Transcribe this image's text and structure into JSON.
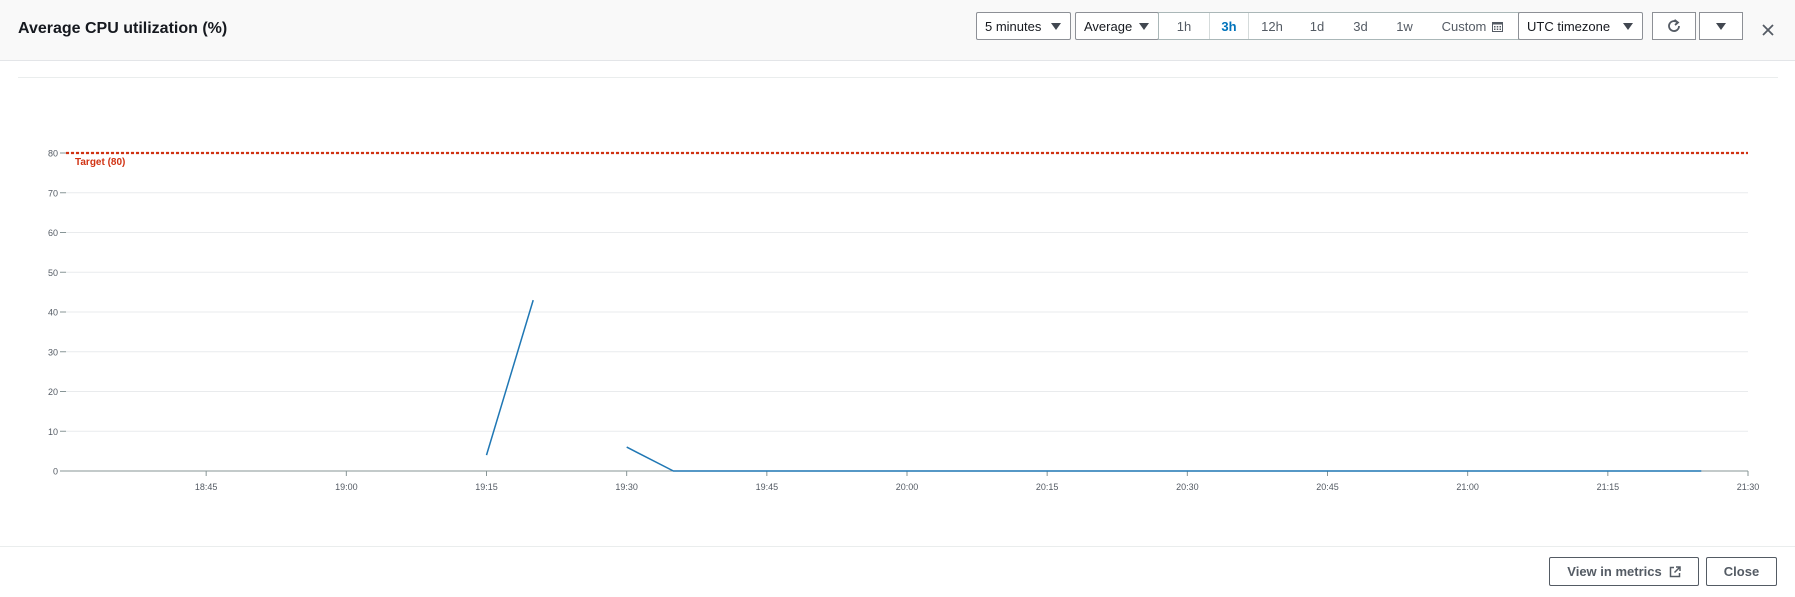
{
  "header": {
    "title": "Average CPU utilization (%)",
    "period": "5 minutes",
    "statistic": "Average",
    "ranges": [
      "1h",
      "3h",
      "12h",
      "1d",
      "3d",
      "1w",
      "Custom"
    ],
    "active_range": "3h",
    "timezone": "UTC timezone"
  },
  "footer": {
    "view_metrics": "View in metrics",
    "close": "Close"
  },
  "icons": {
    "refresh": "refresh-icon",
    "dropdown": "caret-down-icon",
    "close": "close-icon",
    "calendar": "calendar-icon",
    "external": "external-link-icon"
  },
  "colors": {
    "series": "#1f77b4",
    "threshold": "#d13212",
    "active_range": "#0073bb"
  },
  "chart_data": {
    "type": "line",
    "y_ticks": [
      0,
      10,
      20,
      30,
      40,
      50,
      60,
      70,
      80
    ],
    "ylim": [
      0,
      80
    ],
    "x_ticks": [
      "18:45",
      "19:00",
      "19:15",
      "19:30",
      "19:45",
      "20:00",
      "20:15",
      "20:30",
      "20:45",
      "21:00",
      "21:15",
      "21:30"
    ],
    "xlim": [
      "18:30",
      "21:30"
    ],
    "grid": true,
    "threshold": {
      "label": "Target (80)",
      "value": 80
    },
    "segments": [
      [
        {
          "x": "19:15",
          "y": 4
        },
        {
          "x": "19:20",
          "y": 43
        }
      ],
      [
        {
          "x": "19:30",
          "y": 6
        },
        {
          "x": "19:35",
          "y": 0
        },
        {
          "x": "19:40",
          "y": 0
        },
        {
          "x": "19:45",
          "y": 0
        },
        {
          "x": "19:50",
          "y": 0
        },
        {
          "x": "19:55",
          "y": 0
        },
        {
          "x": "20:00",
          "y": 0
        },
        {
          "x": "20:05",
          "y": 0
        },
        {
          "x": "20:10",
          "y": 0
        },
        {
          "x": "20:15",
          "y": 0
        },
        {
          "x": "20:20",
          "y": 0
        },
        {
          "x": "20:25",
          "y": 0
        },
        {
          "x": "20:30",
          "y": 0
        },
        {
          "x": "20:35",
          "y": 0
        },
        {
          "x": "20:40",
          "y": 0
        },
        {
          "x": "20:45",
          "y": 0
        },
        {
          "x": "20:50",
          "y": 0
        },
        {
          "x": "20:55",
          "y": 0
        },
        {
          "x": "21:00",
          "y": 0
        },
        {
          "x": "21:05",
          "y": 0
        },
        {
          "x": "21:10",
          "y": 0
        },
        {
          "x": "21:15",
          "y": 0
        },
        {
          "x": "21:20",
          "y": 0
        },
        {
          "x": "21:25",
          "y": 0
        }
      ]
    ]
  }
}
